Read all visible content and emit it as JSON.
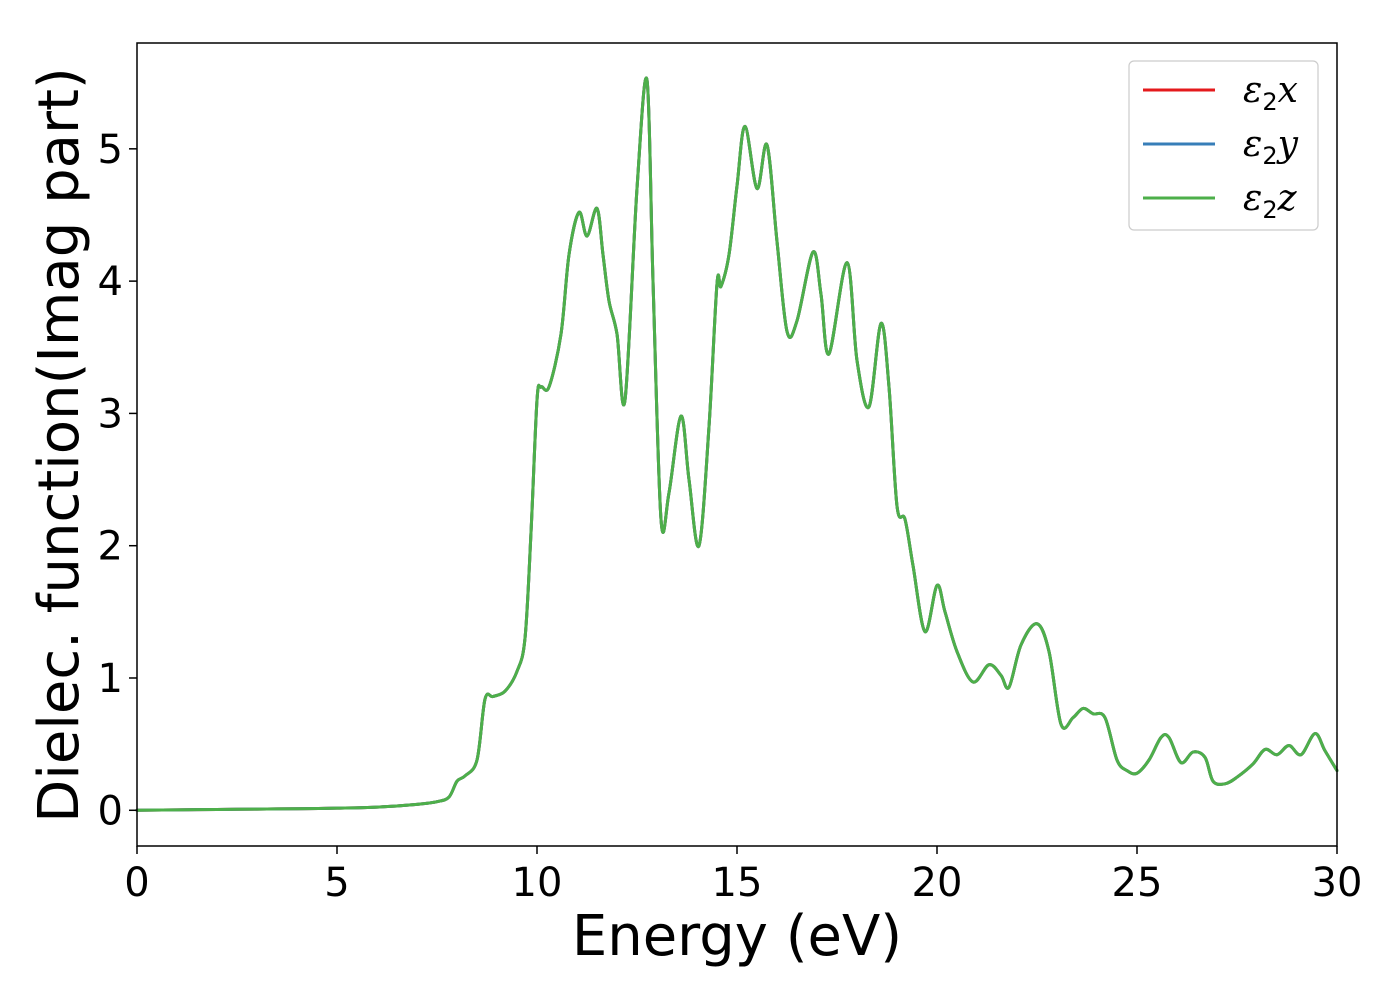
{
  "chart_data": {
    "type": "line",
    "xlabel": "Energy (eV)",
    "ylabel": "Dielec. function(Imag part)",
    "xlim": [
      0,
      30
    ],
    "ylim": [
      -0.27,
      5.8
    ],
    "xticks": [
      0,
      5,
      10,
      15,
      20,
      25,
      30
    ],
    "xtick_labels": [
      "0",
      "5",
      "10",
      "15",
      "20",
      "25",
      "30"
    ],
    "yticks": [
      0,
      1,
      2,
      3,
      4,
      5
    ],
    "ytick_labels": [
      "0",
      "1",
      "2",
      "3",
      "4",
      "5"
    ],
    "grid": false,
    "legend_position": "top-right",
    "x": [
      0,
      1,
      2,
      3,
      4,
      5,
      6,
      7,
      7.5,
      7.8,
      8.0,
      8.2,
      8.5,
      8.7,
      8.9,
      9.2,
      9.5,
      9.7,
      9.85,
      10.0,
      10.1,
      10.3,
      10.6,
      10.8,
      11.05,
      11.25,
      11.5,
      11.65,
      11.8,
      12.0,
      12.2,
      12.5,
      12.75,
      12.9,
      13.1,
      13.3,
      13.6,
      13.8,
      14.05,
      14.3,
      14.5,
      14.6,
      14.8,
      15.0,
      15.2,
      15.5,
      15.75,
      16.0,
      16.25,
      16.5,
      16.9,
      17.1,
      17.3,
      17.75,
      18.0,
      18.3,
      18.6,
      18.8,
      19.0,
      19.2,
      19.4,
      19.7,
      20.0,
      20.2,
      20.5,
      20.9,
      21.3,
      21.6,
      21.8,
      22.1,
      22.5,
      22.8,
      23.1,
      23.4,
      23.65,
      23.9,
      24.2,
      24.5,
      24.75,
      25.0,
      25.3,
      25.6,
      25.8,
      26.1,
      26.4,
      26.7,
      26.9,
      27.2,
      27.5,
      27.9,
      28.2,
      28.5,
      28.8,
      29.1,
      29.45,
      29.7,
      30.0
    ],
    "series": [
      {
        "name": "ε2x",
        "color": "#e41a1c",
        "values": [
          0.0,
          0.003,
          0.006,
          0.009,
          0.012,
          0.016,
          0.024,
          0.045,
          0.065,
          0.1,
          0.22,
          0.26,
          0.38,
          0.84,
          0.86,
          0.9,
          1.05,
          1.3,
          2.1,
          3.1,
          3.2,
          3.2,
          3.6,
          4.2,
          4.52,
          4.34,
          4.55,
          4.2,
          3.85,
          3.6,
          3.1,
          4.7,
          5.52,
          4.0,
          2.2,
          2.4,
          2.98,
          2.5,
          2.0,
          2.9,
          3.98,
          3.96,
          4.2,
          4.72,
          5.17,
          4.7,
          5.03,
          4.3,
          3.62,
          3.7,
          4.22,
          3.9,
          3.45,
          4.14,
          3.4,
          3.05,
          3.68,
          3.2,
          2.3,
          2.2,
          1.85,
          1.35,
          1.7,
          1.5,
          1.2,
          0.97,
          1.1,
          1.02,
          0.93,
          1.25,
          1.41,
          1.2,
          0.65,
          0.7,
          0.77,
          0.73,
          0.7,
          0.38,
          0.3,
          0.28,
          0.38,
          0.55,
          0.55,
          0.36,
          0.44,
          0.4,
          0.22,
          0.2,
          0.25,
          0.35,
          0.46,
          0.42,
          0.49,
          0.42,
          0.58,
          0.45,
          0.3
        ]
      },
      {
        "name": "ε2y",
        "color": "#377eb8",
        "values": [
          0.0,
          0.003,
          0.006,
          0.009,
          0.012,
          0.016,
          0.024,
          0.045,
          0.065,
          0.1,
          0.22,
          0.26,
          0.38,
          0.84,
          0.86,
          0.9,
          1.05,
          1.3,
          2.1,
          3.1,
          3.2,
          3.2,
          3.6,
          4.2,
          4.52,
          4.34,
          4.55,
          4.2,
          3.85,
          3.6,
          3.1,
          4.7,
          5.52,
          4.0,
          2.2,
          2.4,
          2.98,
          2.5,
          2.0,
          2.9,
          3.98,
          3.96,
          4.2,
          4.72,
          5.17,
          4.7,
          5.03,
          4.3,
          3.62,
          3.7,
          4.22,
          3.9,
          3.45,
          4.14,
          3.4,
          3.05,
          3.68,
          3.2,
          2.3,
          2.2,
          1.85,
          1.35,
          1.7,
          1.5,
          1.2,
          0.97,
          1.1,
          1.02,
          0.93,
          1.25,
          1.41,
          1.2,
          0.65,
          0.7,
          0.77,
          0.73,
          0.7,
          0.38,
          0.3,
          0.28,
          0.38,
          0.55,
          0.55,
          0.36,
          0.44,
          0.4,
          0.22,
          0.2,
          0.25,
          0.35,
          0.46,
          0.42,
          0.49,
          0.42,
          0.58,
          0.45,
          0.3
        ]
      },
      {
        "name": "ε2z",
        "color": "#4daf4a",
        "values": [
          0.0,
          0.003,
          0.006,
          0.009,
          0.012,
          0.016,
          0.024,
          0.045,
          0.065,
          0.1,
          0.22,
          0.26,
          0.38,
          0.84,
          0.86,
          0.9,
          1.05,
          1.3,
          2.1,
          3.1,
          3.2,
          3.2,
          3.6,
          4.2,
          4.52,
          4.34,
          4.55,
          4.2,
          3.85,
          3.6,
          3.1,
          4.7,
          5.52,
          4.0,
          2.2,
          2.4,
          2.98,
          2.5,
          2.0,
          2.9,
          3.98,
          3.96,
          4.2,
          4.72,
          5.17,
          4.7,
          5.03,
          4.3,
          3.62,
          3.7,
          4.22,
          3.9,
          3.45,
          4.14,
          3.4,
          3.05,
          3.68,
          3.2,
          2.3,
          2.2,
          1.85,
          1.35,
          1.7,
          1.5,
          1.2,
          0.97,
          1.1,
          1.02,
          0.93,
          1.25,
          1.41,
          1.2,
          0.65,
          0.7,
          0.77,
          0.73,
          0.7,
          0.38,
          0.3,
          0.28,
          0.38,
          0.55,
          0.55,
          0.36,
          0.44,
          0.4,
          0.22,
          0.2,
          0.25,
          0.35,
          0.46,
          0.42,
          0.49,
          0.42,
          0.58,
          0.45,
          0.3
        ]
      }
    ],
    "legend": [
      {
        "symbol": "ε",
        "sub": "2",
        "var": "x",
        "color": "#e41a1c"
      },
      {
        "symbol": "ε",
        "sub": "2",
        "var": "y",
        "color": "#377eb8"
      },
      {
        "symbol": "ε",
        "sub": "2",
        "var": "z",
        "color": "#4daf4a"
      }
    ]
  }
}
